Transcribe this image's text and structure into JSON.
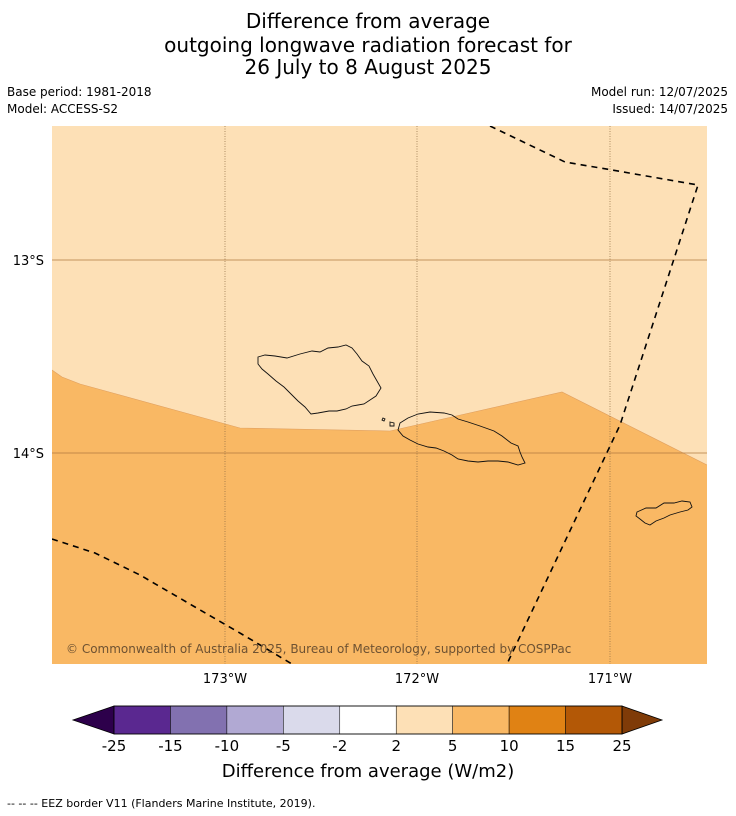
{
  "title": {
    "line1": "Difference from average",
    "line2": "outgoing longwave radiation forecast for",
    "line3": "26 July to 8 August 2025"
  },
  "meta": {
    "base_period": "Base period: 1981-2018",
    "model": "Model: ACCESS-S2",
    "model_run": "Model run: 12/07/2025",
    "issued": "Issued: 14/07/2025"
  },
  "map": {
    "lat_labels": [
      "13°S",
      "14°S"
    ],
    "lon_labels": [
      "173°W",
      "172°W",
      "171°W"
    ],
    "copyright": "© Commonwealth of Australia 2025, Bureau of Meteorology, supported by COSPPac",
    "fill_colors": {
      "light": "#fde0b6",
      "medium": "#f9b864"
    },
    "regions": [
      "2 to 5 W/m2 (north)",
      "5 to 10 W/m2 (south)"
    ]
  },
  "colorbar": {
    "tick_labels": [
      "-25",
      "-15",
      "-10",
      "-5",
      "-2",
      "2",
      "5",
      "10",
      "15",
      "25"
    ],
    "colors": [
      "#5a2890",
      "#8271b0",
      "#b1a9d3",
      "#dadaeb",
      "#ffffff",
      "#fde0b6",
      "#f9b864",
      "#e08214",
      "#b35806"
    ],
    "extend_low_color": "#2d004b",
    "extend_high_color": "#7f3b08",
    "title": "Difference from average (W/m2)"
  },
  "footer": {
    "legend": "--  --  -- EEZ border V11 (Flanders Marine Institute, 2019)."
  }
}
